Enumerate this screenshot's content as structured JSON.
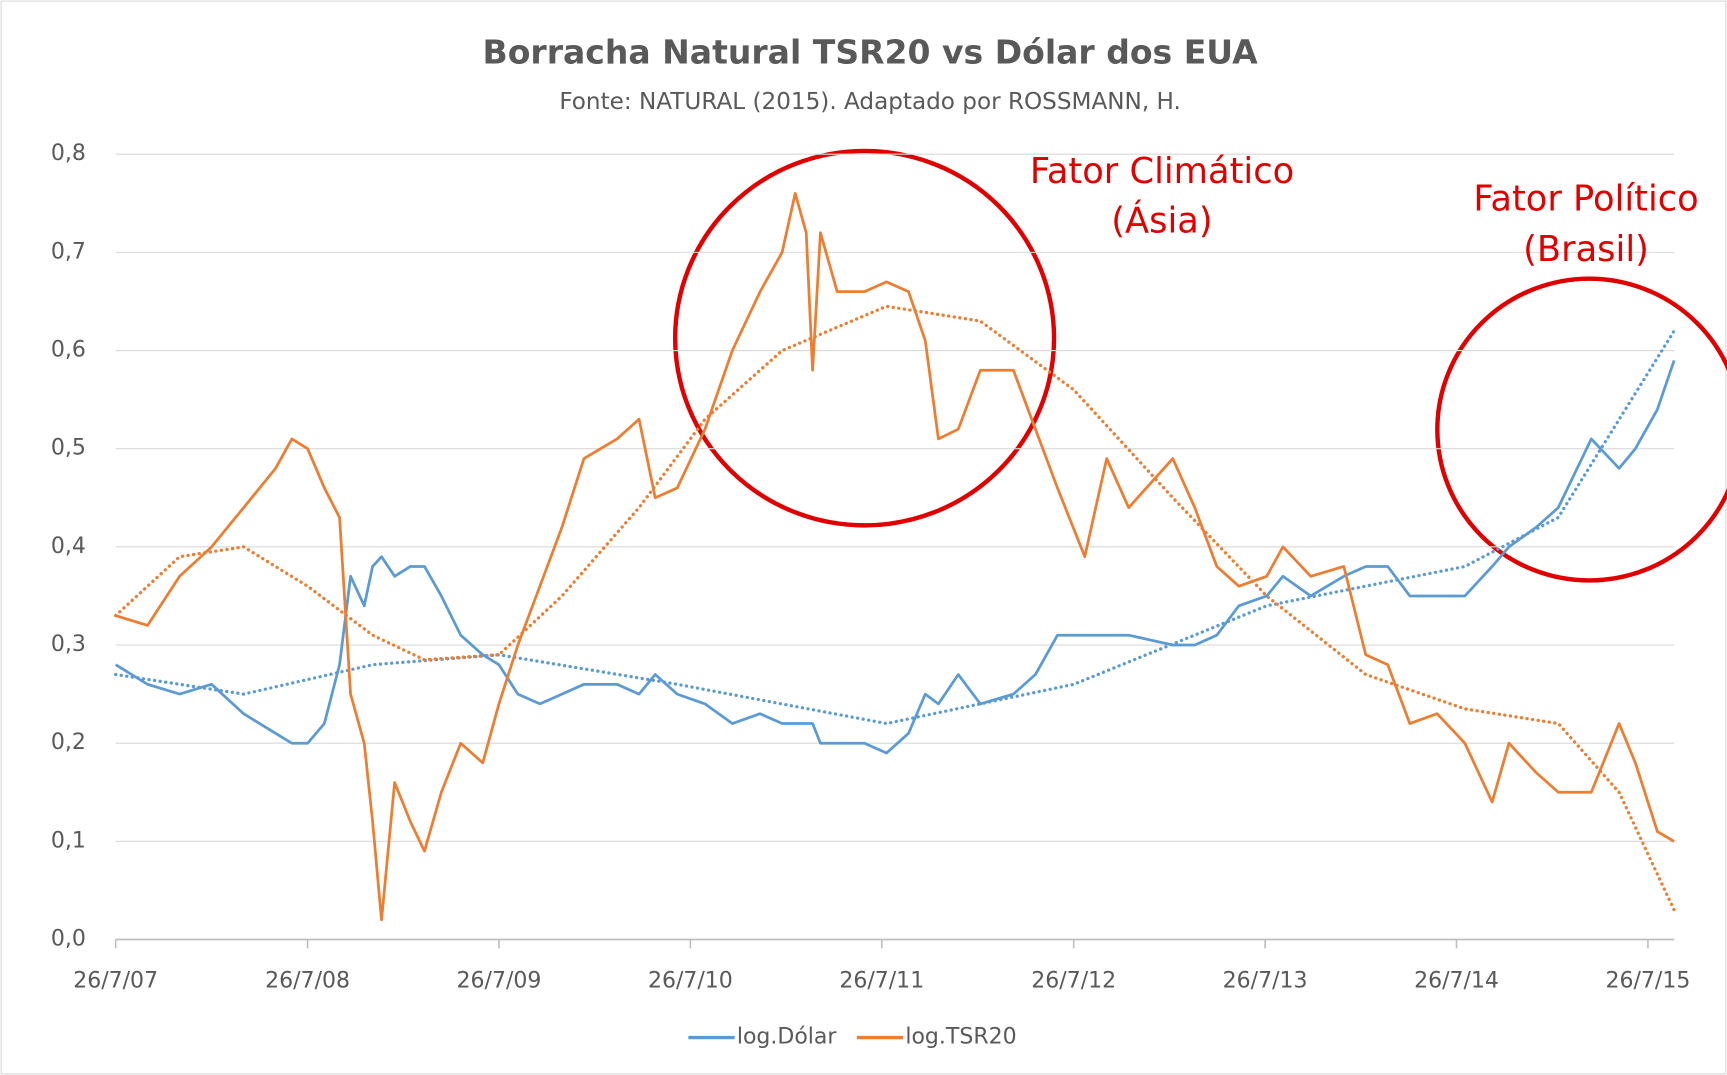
{
  "chart_data": {
    "type": "line",
    "title": "Borracha Natural TSR20 vs Dólar dos EUA",
    "subtitle": "Fonte: NATURAL (2015). Adaptado por ROSSMANN, H.",
    "annotations": [
      "Fator Climático",
      "(Ásia)",
      "Fator Político",
      "(Brasil)"
    ],
    "x": [
      "2007-07-26",
      "2007-09-25",
      "2007-11-25",
      "2008-01-25",
      "2008-03-26",
      "2008-05-26",
      "2008-06-26",
      "2008-07-26",
      "2008-08-27",
      "2008-09-25",
      "2008-10-16",
      "2008-11-11",
      "2008-11-27",
      "2008-12-14",
      "2009-01-08",
      "2009-02-07",
      "2009-03-06",
      "2009-04-07",
      "2009-05-14",
      "2009-06-25",
      "2009-07-26",
      "2009-08-31",
      "2009-10-12",
      "2009-11-23",
      "2010-01-04",
      "2010-03-08",
      "2010-04-19",
      "2010-05-20",
      "2010-07-01",
      "2010-08-23",
      "2010-10-14",
      "2010-12-06",
      "2011-01-17",
      "2011-02-11",
      "2011-03-04",
      "2011-03-16",
      "2011-03-31",
      "2011-05-02",
      "2011-06-23",
      "2011-08-04",
      "2011-09-15",
      "2011-10-17",
      "2011-11-11",
      "2011-12-19",
      "2012-01-30",
      "2012-04-02",
      "2012-05-14",
      "2012-06-25",
      "2012-08-16",
      "2012-09-27",
      "2012-11-08",
      "2013-01-31",
      "2013-03-14",
      "2013-04-25",
      "2013-06-06",
      "2013-07-29",
      "2013-08-29",
      "2013-10-21",
      "2013-12-23",
      "2014-02-03",
      "2014-03-17",
      "2014-04-28",
      "2014-06-19",
      "2014-08-11",
      "2014-10-02",
      "2014-11-03",
      "2014-12-25",
      "2015-02-05",
      "2015-04-09",
      "2015-06-01",
      "2015-07-02",
      "2015-08-13",
      "2015-09-14"
    ],
    "series": [
      {
        "name": "log.Dólar",
        "color": "#5b9bd5",
        "values": [
          0.28,
          0.26,
          0.25,
          0.26,
          0.23,
          0.21,
          0.2,
          0.2,
          0.22,
          0.28,
          0.37,
          0.34,
          0.38,
          0.39,
          0.37,
          0.38,
          0.38,
          0.35,
          0.31,
          0.29,
          0.28,
          0.25,
          0.24,
          0.25,
          0.26,
          0.26,
          0.25,
          0.27,
          0.25,
          0.24,
          0.22,
          0.23,
          0.22,
          0.22,
          0.22,
          0.22,
          0.2,
          0.2,
          0.2,
          0.19,
          0.21,
          0.25,
          0.24,
          0.27,
          0.24,
          0.25,
          0.27,
          0.31,
          0.31,
          0.31,
          0.31,
          0.3,
          0.3,
          0.31,
          0.34,
          0.35,
          0.37,
          0.35,
          0.37,
          0.38,
          0.38,
          0.35,
          0.35,
          0.35,
          0.38,
          0.4,
          0.42,
          0.44,
          0.51,
          0.48,
          0.5,
          0.54,
          0.59
        ],
        "trend": {
          "x": [
            "2007-07-26",
            "2008-03-26",
            "2008-11-27",
            "2009-07-26",
            "2010-07-01",
            "2011-08-04",
            "2012-07-26",
            "2013-07-29",
            "2014-08-11",
            "2015-02-05",
            "2015-09-14"
          ],
          "values": [
            0.27,
            0.25,
            0.28,
            0.29,
            0.26,
            0.22,
            0.26,
            0.34,
            0.38,
            0.43,
            0.62
          ]
        }
      },
      {
        "name": "log.TSR20",
        "color": "#ed7d31",
        "values": [
          0.33,
          0.32,
          0.37,
          0.4,
          0.44,
          0.48,
          0.51,
          0.5,
          0.46,
          0.43,
          0.25,
          0.2,
          0.12,
          0.02,
          0.16,
          0.12,
          0.09,
          0.15,
          0.2,
          0.18,
          0.24,
          0.3,
          0.36,
          0.42,
          0.49,
          0.51,
          0.53,
          0.45,
          0.46,
          0.52,
          0.6,
          0.66,
          0.7,
          0.76,
          0.72,
          0.58,
          0.72,
          0.66,
          0.66,
          0.67,
          0.66,
          0.61,
          0.51,
          0.52,
          0.58,
          0.58,
          0.52,
          0.46,
          0.39,
          0.49,
          0.44,
          0.49,
          0.44,
          0.38,
          0.36,
          0.37,
          0.4,
          0.37,
          0.38,
          0.29,
          0.28,
          0.22,
          0.23,
          0.2,
          0.14,
          0.2,
          0.17,
          0.15,
          0.15,
          0.22,
          0.18,
          0.11,
          0.1
        ],
        "trend": {
          "x": [
            "2007-07-26",
            "2007-11-25",
            "2008-03-26",
            "2008-07-26",
            "2008-11-27",
            "2009-03-06",
            "2009-07-26",
            "2009-11-23",
            "2010-04-19",
            "2010-08-23",
            "2011-01-17",
            "2011-08-04",
            "2012-01-30",
            "2012-07-26",
            "2013-01-31",
            "2013-07-29",
            "2014-02-03",
            "2014-08-11",
            "2015-02-05",
            "2015-06-01",
            "2015-09-14"
          ],
          "values": [
            0.33,
            0.39,
            0.4,
            0.36,
            0.31,
            0.285,
            0.29,
            0.35,
            0.44,
            0.53,
            0.6,
            0.645,
            0.63,
            0.56,
            0.45,
            0.35,
            0.27,
            0.235,
            0.22,
            0.15,
            0.03
          ]
        }
      }
    ],
    "xlim": [
      "2007-07-26",
      "2015-09-14"
    ],
    "xticks": [
      {
        "value": "2007-07-26",
        "label": "26/7/07"
      },
      {
        "value": "2008-07-26",
        "label": "26/7/08"
      },
      {
        "value": "2009-07-26",
        "label": "26/7/09"
      },
      {
        "value": "2010-07-26",
        "label": "26/7/10"
      },
      {
        "value": "2011-07-26",
        "label": "26/7/11"
      },
      {
        "value": "2012-07-26",
        "label": "26/7/12"
      },
      {
        "value": "2013-07-26",
        "label": "26/7/13"
      },
      {
        "value": "2014-07-26",
        "label": "26/7/14"
      },
      {
        "value": "2015-07-26",
        "label": "26/7/15"
      }
    ],
    "ylim": [
      0,
      0.8
    ],
    "yticks": [
      {
        "value": 0,
        "label": "0,0"
      },
      {
        "value": 0.1,
        "label": "0,1"
      },
      {
        "value": 0.2,
        "label": "0,2"
      },
      {
        "value": 0.3,
        "label": "0,3"
      },
      {
        "value": 0.4,
        "label": "0,4"
      },
      {
        "value": 0.5,
        "label": "0,5"
      },
      {
        "value": 0.6,
        "label": "0,6"
      },
      {
        "value": 0.7,
        "label": "0,7"
      },
      {
        "value": 0.8,
        "label": "0,8"
      }
    ],
    "grid": true,
    "legend": "bottom"
  }
}
